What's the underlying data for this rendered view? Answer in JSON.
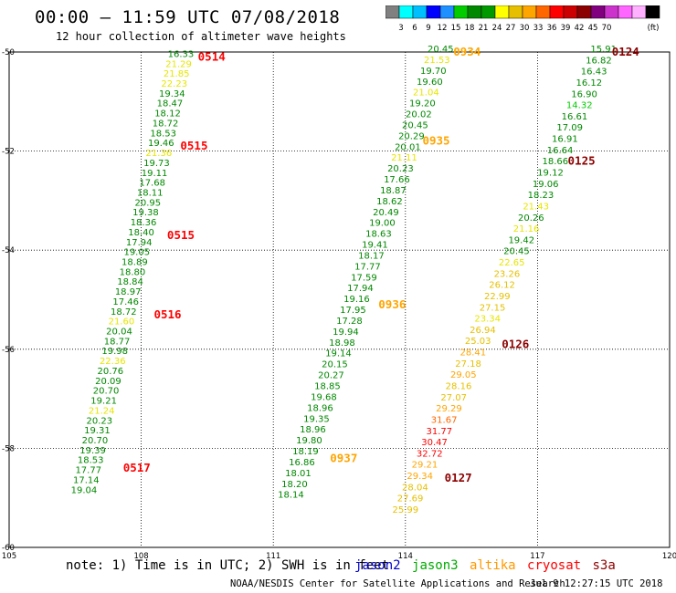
{
  "title": "00:00 – 11:59 UTC 07/08/2018",
  "subtitle": "12 hour collection of altimeter wave heights",
  "colorbar": {
    "colors": [
      "#808080",
      "#00ffff",
      "#00bfff",
      "#0000ff",
      "#1e90ff",
      "#00cc00",
      "#008800",
      "#009900",
      "#ffff00",
      "#e6c000",
      "#ffa500",
      "#ff6600",
      "#ff0000",
      "#cc0000",
      "#8b0000",
      "#800080",
      "#cc33cc",
      "#ff66ff",
      "#ffb0ff",
      "#000000"
    ],
    "labels": [
      "3",
      "6",
      "9",
      "12",
      "15",
      "18",
      "21",
      "24",
      "27",
      "30",
      "33",
      "36",
      "39",
      "42",
      "45",
      "70",
      "(ft)"
    ]
  },
  "lat_labels": [
    "-50",
    "-52",
    "-54",
    "-56",
    "-58",
    "-60"
  ],
  "lon_labels": [
    "105",
    "108",
    "111",
    "114",
    "117",
    "120"
  ],
  "tracks": [
    {
      "name": "track-west",
      "points": [
        {
          "v": "16.33",
          "c": "#008800",
          "lat": -50.1,
          "lon": 108.9
        },
        {
          "v": "21.29",
          "c": "#e6e600",
          "lat": -50.3,
          "lon": 108.85
        },
        {
          "v": "21.85",
          "c": "#e6e600",
          "lat": -50.5,
          "lon": 108.8
        },
        {
          "v": "22.23",
          "c": "#e6e600",
          "lat": -50.7,
          "lon": 108.75
        },
        {
          "v": "19.34",
          "c": "#008800",
          "lat": -50.9,
          "lon": 108.7
        },
        {
          "v": "18.47",
          "c": "#008800",
          "lat": -51.1,
          "lon": 108.65
        },
        {
          "v": "18.12",
          "c": "#008800",
          "lat": -51.3,
          "lon": 108.6
        },
        {
          "v": "18.72",
          "c": "#008800",
          "lat": -51.5,
          "lon": 108.55
        },
        {
          "v": "18.53",
          "c": "#008800",
          "lat": -51.7,
          "lon": 108.5
        },
        {
          "v": "19.46",
          "c": "#008800",
          "lat": -51.9,
          "lon": 108.45
        },
        {
          "v": "21.36",
          "c": "#e6e600",
          "lat": -52.1,
          "lon": 108.4
        },
        {
          "v": "19.73",
          "c": "#008800",
          "lat": -52.3,
          "lon": 108.35
        },
        {
          "v": "19.11",
          "c": "#008800",
          "lat": -52.5,
          "lon": 108.3
        },
        {
          "v": "17.68",
          "c": "#008800",
          "lat": -52.7,
          "lon": 108.25
        },
        {
          "v": "18.11",
          "c": "#008800",
          "lat": -52.9,
          "lon": 108.2
        },
        {
          "v": "20.95",
          "c": "#008800",
          "lat": -53.1,
          "lon": 108.15
        },
        {
          "v": "19.38",
          "c": "#008800",
          "lat": -53.3,
          "lon": 108.1
        },
        {
          "v": "18.36",
          "c": "#008800",
          "lat": -53.5,
          "lon": 108.05
        },
        {
          "v": "18.40",
          "c": "#008800",
          "lat": -53.7,
          "lon": 108.0
        },
        {
          "v": "17.94",
          "c": "#008800",
          "lat": -53.9,
          "lon": 107.95
        },
        {
          "v": "19.05",
          "c": "#008800",
          "lat": -54.1,
          "lon": 107.9
        },
        {
          "v": "18.89",
          "c": "#008800",
          "lat": -54.3,
          "lon": 107.85
        },
        {
          "v": "18.80",
          "c": "#008800",
          "lat": -54.5,
          "lon": 107.8
        },
        {
          "v": "18.84",
          "c": "#008800",
          "lat": -54.7,
          "lon": 107.75
        },
        {
          "v": "18.97",
          "c": "#008800",
          "lat": -54.9,
          "lon": 107.7
        },
        {
          "v": "17.46",
          "c": "#008800",
          "lat": -55.1,
          "lon": 107.65
        },
        {
          "v": "18.72",
          "c": "#008800",
          "lat": -55.3,
          "lon": 107.6
        },
        {
          "v": "21.60",
          "c": "#e6e600",
          "lat": -55.5,
          "lon": 107.55
        },
        {
          "v": "20.04",
          "c": "#008800",
          "lat": -55.7,
          "lon": 107.5
        },
        {
          "v": "18.77",
          "c": "#008800",
          "lat": -55.9,
          "lon": 107.45
        },
        {
          "v": "19.98",
          "c": "#008800",
          "lat": -56.1,
          "lon": 107.4
        },
        {
          "v": "22.36",
          "c": "#e6e600",
          "lat": -56.3,
          "lon": 107.35
        },
        {
          "v": "20.76",
          "c": "#008800",
          "lat": -56.5,
          "lon": 107.3
        },
        {
          "v": "20.09",
          "c": "#008800",
          "lat": -56.7,
          "lon": 107.25
        },
        {
          "v": "20.70",
          "c": "#008800",
          "lat": -56.9,
          "lon": 107.2
        },
        {
          "v": "19.21",
          "c": "#008800",
          "lat": -57.1,
          "lon": 107.15
        },
        {
          "v": "21.24",
          "c": "#e6e600",
          "lat": -57.3,
          "lon": 107.1
        },
        {
          "v": "20.23",
          "c": "#008800",
          "lat": -57.5,
          "lon": 107.05
        },
        {
          "v": "19.31",
          "c": "#008800",
          "lat": -57.7,
          "lon": 107.0
        },
        {
          "v": "20.70",
          "c": "#008800",
          "lat": -57.9,
          "lon": 106.95
        },
        {
          "v": "19.39",
          "c": "#008800",
          "lat": -58.1,
          "lon": 106.9
        },
        {
          "v": "18.53",
          "c": "#008800",
          "lat": -58.3,
          "lon": 106.85
        },
        {
          "v": "17.77",
          "c": "#008800",
          "lat": -58.5,
          "lon": 106.8
        },
        {
          "v": "17.14",
          "c": "#008800",
          "lat": -58.7,
          "lon": 106.75
        },
        {
          "v": "19.04",
          "c": "#008800",
          "lat": -58.9,
          "lon": 106.7
        }
      ]
    }
  ],
  "time_labels": [
    {
      "t": "0514",
      "c": "#ff0000",
      "lat": -50.1,
      "lon": 109.6
    },
    {
      "t": "0515",
      "c": "#ff0000",
      "lat": -51.9,
      "lon": 109.2
    },
    {
      "t": "0515",
      "c": "#ff0000",
      "lat": -53.7,
      "lon": 108.9
    },
    {
      "t": "0516",
      "c": "#ff0000",
      "lat": -55.3,
      "lon": 108.6
    },
    {
      "t": "0517",
      "c": "#ff0000",
      "lat": -58.4,
      "lon": 107.9
    },
    {
      "t": "0934",
      "c": "#ffa500",
      "lat": -50.0,
      "lon": 115.4
    },
    {
      "t": "0935",
      "c": "#ffa500",
      "lat": -51.8,
      "lon": 114.7
    },
    {
      "t": "0936",
      "c": "#ffa500",
      "lat": -55.1,
      "lon": 113.7
    },
    {
      "t": "0937",
      "c": "#ffa500",
      "lat": -58.2,
      "lon": 112.6
    },
    {
      "t": "0124",
      "c": "#8b0000",
      "lat": -50.0,
      "lon": 119.0
    },
    {
      "t": "0125",
      "c": "#8b0000",
      "lat": -52.2,
      "lon": 118.0
    },
    {
      "t": "0126",
      "c": "#8b0000",
      "lat": -55.9,
      "lon": 116.5
    },
    {
      "t": "0127",
      "c": "#8b0000",
      "lat": -58.6,
      "lon": 115.2
    }
  ],
  "note": "note: 1) Time is in UTC; 2) SWH is in feet",
  "legend": [
    {
      "label": "jason2",
      "c": "#0000cc"
    },
    {
      "label": "jason3",
      "c": "#00aa00"
    },
    {
      "label": "altika",
      "c": "#ff9900"
    },
    {
      "label": "cryosat",
      "c": "#ff0000"
    },
    {
      "label": "s3a",
      "c": "#8b0000"
    }
  ],
  "footer": "NOAA/NESDIS Center for Satellite Applications and Research",
  "stamp": "Jul  9 12:27:15 UTC 2018"
}
